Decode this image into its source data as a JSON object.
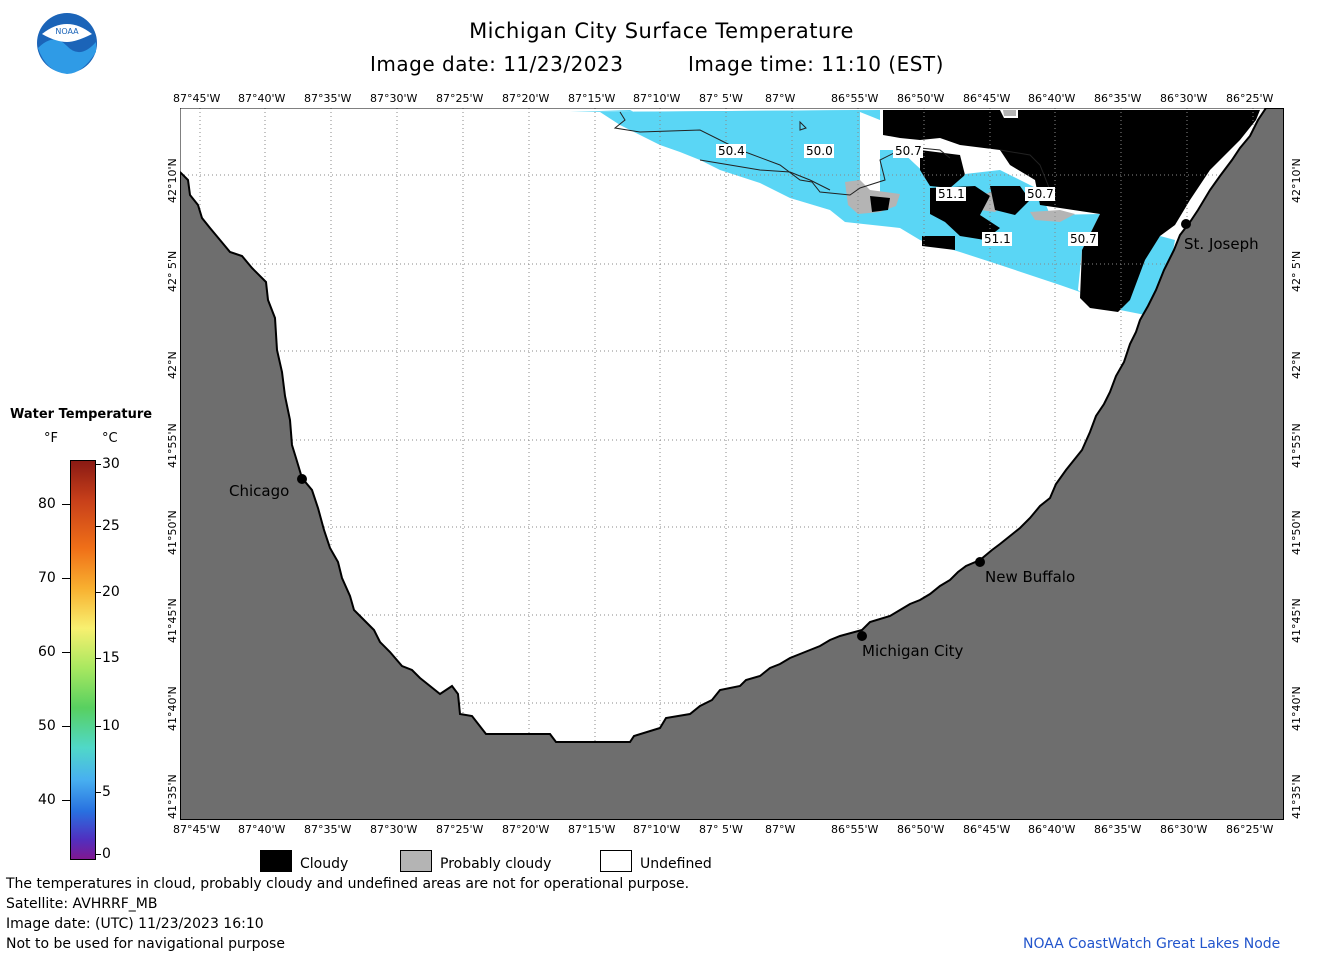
{
  "header": {
    "title": "Michigan City Surface Temperature",
    "image_date": "Image date: 11/23/2023",
    "image_time": "Image time: 11:10 (EST)",
    "logo_text": "NOAA"
  },
  "map": {
    "lon_labels": [
      "87°45'W",
      "87°40'W",
      "87°35'W",
      "87°30'W",
      "87°25'W",
      "87°20'W",
      "87°15'W",
      "87°10'W",
      "87° 5'W",
      "87°W",
      "86°55'W",
      "86°50'W",
      "86°45'W",
      "86°40'W",
      "86°35'W",
      "86°30'W",
      "86°25'W"
    ],
    "lat_labels": [
      "42°10'N",
      "42° 5'N",
      "42°N",
      "41°55'N",
      "41°50'N",
      "41°45'N",
      "41°40'N",
      "41°35'N"
    ],
    "cities": [
      {
        "name": "Chicago"
      },
      {
        "name": "Michigan City"
      },
      {
        "name": "New Buffalo"
      },
      {
        "name": "St. Joseph"
      }
    ],
    "temp_labels": [
      "50.4",
      "50.0",
      "50.7",
      "51.1",
      "50.7",
      "51.1",
      "50.7"
    ],
    "colors": {
      "land": "#6e6e6e",
      "water_temp": "#5ad6f5",
      "cloud": "#000000",
      "probably_cloudy": "#b4b4b4",
      "undefined": "#ffffff"
    }
  },
  "colorbar": {
    "title": "Water Temperature",
    "unit_f": "°F",
    "unit_c": "°C",
    "f_ticks": [
      "80",
      "70",
      "60",
      "50",
      "40"
    ],
    "c_ticks": [
      "30",
      "25",
      "20",
      "15",
      "10",
      "5",
      "0"
    ]
  },
  "legend": {
    "cloudy": "Cloudy",
    "probably_cloudy": "Probably cloudy",
    "undefined": "Undefined"
  },
  "footer": {
    "line1": "The temperatures in cloud, probably cloudy and undefined areas are not for operational purpose.",
    "line2": "Satellite: AVHRRF_MB",
    "line3": "Image date: (UTC) 11/23/2023  16:10",
    "line4": "Not to be used for navigational purpose",
    "credit": "NOAA CoastWatch Great Lakes Node"
  }
}
